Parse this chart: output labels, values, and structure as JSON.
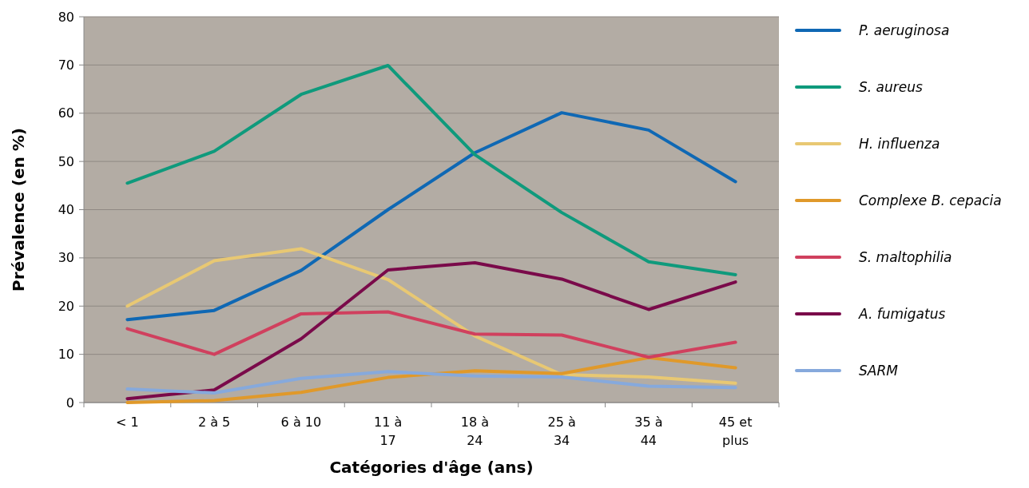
{
  "chart_data": {
    "type": "line",
    "xlabel": "Catégories d'âge (ans)",
    "ylabel": "Prévalence (en %)",
    "categories": [
      "< 1",
      "2 à 5",
      "6 à 10",
      "11 à\n17",
      "18 à\n24",
      "25 à\n34",
      "35 à\n44",
      "45 et\nplus"
    ],
    "ylim": [
      0,
      80
    ],
    "yticks": [
      0,
      10,
      20,
      30,
      40,
      50,
      60,
      70,
      80
    ],
    "grid": "y",
    "legend": "right",
    "marker": "none",
    "line_style": "solid",
    "series": [
      {
        "name": "P. aeruginosa",
        "color": "#0f68b4",
        "values": [
          17.2,
          19.1,
          27.4,
          40,
          51.8,
          60.1,
          56.5,
          45.8
        ]
      },
      {
        "name": "S. aureus",
        "color": "#0f9a7c",
        "values": [
          45.5,
          52.1,
          63.9,
          69.9,
          51.4,
          39.4,
          29.2,
          26.5
        ]
      },
      {
        "name": "H. influenza",
        "color": "#e8c873",
        "values": [
          20,
          29.4,
          31.9,
          25.5,
          13.8,
          5.8,
          5.3,
          4
        ]
      },
      {
        "name": "Complexe B. cepacia",
        "color": "#e0992a",
        "values": [
          0,
          0.4,
          2.1,
          5.2,
          6.6,
          6,
          9.3,
          7.2
        ]
      },
      {
        "name": "S. maltophilia",
        "color": "#d0405e",
        "values": [
          15.3,
          10,
          18.4,
          18.8,
          14.2,
          14,
          9.4,
          12.5
        ]
      },
      {
        "name": "A. fumigatus",
        "color": "#7a0a4a",
        "values": [
          0.8,
          2.6,
          13.2,
          27.5,
          29,
          25.6,
          19.3,
          25
        ]
      },
      {
        "name": "SARM",
        "color": "#86a9dc",
        "values": [
          2.8,
          2,
          5,
          6.4,
          5.5,
          5.3,
          3.4,
          3.1
        ]
      }
    ]
  }
}
